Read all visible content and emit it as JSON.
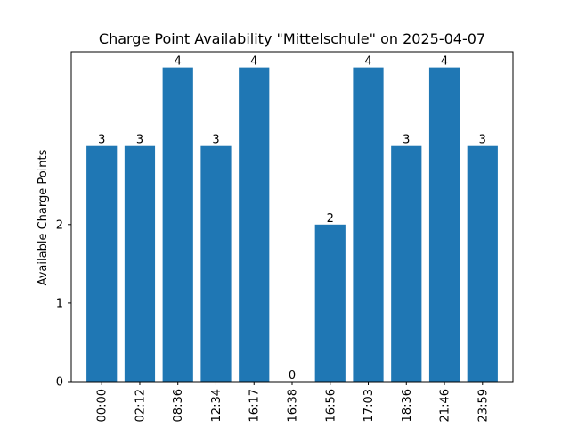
{
  "chart_data": {
    "type": "bar",
    "title": "Charge Point Availability \"Mittelschule\" on 2025-04-07",
    "xlabel": "",
    "ylabel": "Available Charge Points",
    "categories": [
      "00:00",
      "02:12",
      "08:36",
      "12:34",
      "16:17",
      "16:38",
      "16:56",
      "17:03",
      "18:36",
      "21:46",
      "23:59"
    ],
    "values": [
      3,
      3,
      4,
      3,
      4,
      0,
      2,
      4,
      3,
      4,
      3
    ],
    "y_ticks": [
      0,
      1,
      2
    ],
    "ylim": [
      0,
      4.2
    ],
    "bar_color": "#1f77b4",
    "grid": false,
    "legend": "none"
  }
}
